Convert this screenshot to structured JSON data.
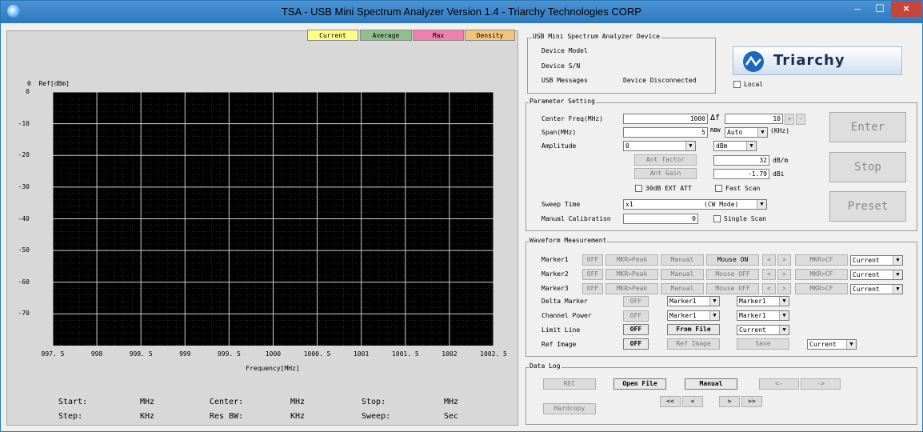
{
  "window": {
    "title_parts": [
      "TSA",
      " - ",
      "USB Mini Spectrum Analyzer Version 1.4",
      " - ",
      "Triarchy Technologies CORP"
    ],
    "minimize": "–",
    "maximize": "☐",
    "close": "×"
  },
  "chart": {
    "tabs": [
      "Current",
      "Average",
      "Max",
      "Density"
    ],
    "ylabel_prefix": "0",
    "ylabel": "Ref[dBm]",
    "yticks": [
      "0",
      "-10",
      "-20",
      "-30",
      "-40",
      "-50",
      "-60",
      "-70"
    ],
    "xticks": [
      "997. 5",
      "998",
      "998. 5",
      "999",
      "999. 5",
      "1000",
      "1000. 5",
      "1001",
      "1001. 5",
      "1002",
      "1002. 5"
    ],
    "xlabel": "Frequency[MHz]"
  },
  "chart_data": {
    "type": "line",
    "title": "",
    "xlabel": "Frequency[MHz]",
    "ylabel": "Ref[dBm]",
    "xlim": [
      997.5,
      1002.5
    ],
    "ylim": [
      -80,
      0
    ],
    "grid": true,
    "series": []
  },
  "stats": {
    "start_label": "Start:",
    "start_unit": "MHz",
    "center_label": "Center:",
    "center_unit": "MHz",
    "stop_label": "Stop:",
    "stop_unit": "MHz",
    "step_label": "Step:",
    "step_unit": "KHz",
    "resbw_label": "Res BW:",
    "resbw_unit": "KHz",
    "sweep_label": "Sweep:",
    "sweep_unit": "Sec"
  },
  "device": {
    "group": "USB Mini Spectrum Analyzer Device",
    "model_label": "Device Model",
    "sn_label": "Device S/N",
    "messages_label": "USB Messages",
    "messages_value": "Device Disconnected",
    "local_label": "Local",
    "logo_text": "Triarchy"
  },
  "params": {
    "group": "Parameter Setting",
    "center_label": "Center Freq(MHz)",
    "center_value": "1000",
    "delta_f_label": "Δf",
    "delta_f_value": "10",
    "plus": "+",
    "minus": "-",
    "span_label": "Span(MHz)",
    "span_value": "5",
    "rbw_label": "RBW",
    "rbw_value": "Auto",
    "khz_label": "(KHz)",
    "amp_label": "Amplitude",
    "amp_value": "0",
    "amp_unit": "dBm",
    "ant_factor_btn": "Ant factor",
    "ant_factor_value": "32",
    "ant_factor_unit": "dB/m",
    "ant_gain_btn": "Ant Gain",
    "ant_gain_value": "-1.79",
    "ant_gain_unit": "dBi",
    "ext_att_label": "30dB EXT ATT",
    "fast_scan_label": "Fast Scan",
    "sweep_label": "Sweep Time",
    "sweep_value": "x1",
    "sweep_mode": "(CW Mode)",
    "cal_label": "Manual Calibration",
    "cal_value": "0",
    "single_scan_label": "Single Scan",
    "enter": "Enter",
    "stop": "Stop",
    "preset": "Preset"
  },
  "waveform": {
    "group": "Waveform Measurement",
    "markers": [
      {
        "label": "Marker1",
        "off": "OFF",
        "peak": "MKR>Peak",
        "manual": "Manual",
        "mouse": "Mouse ON",
        "prev": "<",
        "next": ">",
        "cf": "MKR>CF",
        "trace": "Current"
      },
      {
        "label": "Marker2",
        "off": "OFF",
        "peak": "MKR>Peak",
        "manual": "Manual",
        "mouse": "Mouse OFF",
        "prev": "<",
        "next": ">",
        "cf": "MKR>CF",
        "trace": "Current"
      },
      {
        "label": "Marker3",
        "off": "OFF",
        "peak": "MKR>Peak",
        "manual": "Manual",
        "mouse": "Mouse OFF",
        "prev": "<",
        "next": ">",
        "cf": "MKR>CF",
        "trace": "Current"
      }
    ],
    "delta_label": "Delta Marker",
    "delta_off": "OFF",
    "delta_a": "Marker1",
    "delta_b": "Marker1",
    "chpower_label": "Channel Power",
    "chpower_off": "OFF",
    "chpower_a": "Marker1",
    "chpower_b": "Marker1",
    "limit_label": "Limit Line",
    "limit_off": "OFF",
    "limit_from_file": "From File",
    "limit_trace": "Current",
    "refimg_label": "Ref Image",
    "refimg_off": "OFF",
    "refimg_btn": "Ref Image",
    "refimg_save": "Save",
    "refimg_trace": "Current"
  },
  "datalog": {
    "group": "Data Log",
    "rec": "REC",
    "open_file": "Open File",
    "manual": "Manual",
    "back": "<-",
    "fwd": "->",
    "first": "<<",
    "prev": "<",
    "next": ">",
    "last": ">>",
    "hardcopy": "Hardcopy"
  }
}
